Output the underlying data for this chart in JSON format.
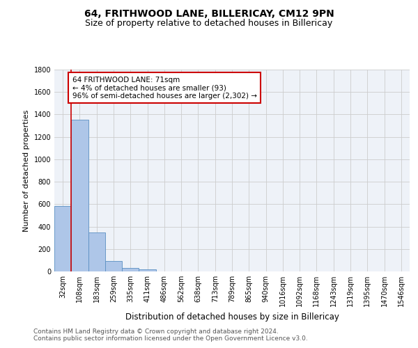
{
  "title": "64, FRITHWOOD LANE, BILLERICAY, CM12 9PN",
  "subtitle": "Size of property relative to detached houses in Billericay",
  "xlabel": "Distribution of detached houses by size in Billericay",
  "ylabel": "Number of detached properties",
  "categories": [
    "32sqm",
    "108sqm",
    "183sqm",
    "259sqm",
    "335sqm",
    "411sqm",
    "486sqm",
    "562sqm",
    "638sqm",
    "713sqm",
    "789sqm",
    "865sqm",
    "940sqm",
    "1016sqm",
    "1092sqm",
    "1168sqm",
    "1243sqm",
    "1319sqm",
    "1395sqm",
    "1470sqm",
    "1546sqm"
  ],
  "values": [
    585,
    1355,
    350,
    93,
    30,
    20,
    0,
    0,
    0,
    0,
    0,
    0,
    0,
    0,
    0,
    0,
    0,
    0,
    0,
    0,
    0
  ],
  "bar_color": "#aec6e8",
  "bar_edge_color": "#5a8fc2",
  "grid_color": "#cccccc",
  "bg_color": "#eef2f8",
  "annotation_text": "64 FRITHWOOD LANE: 71sqm\n← 4% of detached houses are smaller (93)\n96% of semi-detached houses are larger (2,302) →",
  "annotation_box_color": "#cc0000",
  "vline_color": "#cc0000",
  "ylim": [
    0,
    1800
  ],
  "yticks": [
    0,
    200,
    400,
    600,
    800,
    1000,
    1200,
    1400,
    1600,
    1800
  ],
  "footer1": "Contains HM Land Registry data © Crown copyright and database right 2024.",
  "footer2": "Contains public sector information licensed under the Open Government Licence v3.0.",
  "title_fontsize": 10,
  "subtitle_fontsize": 9,
  "xlabel_fontsize": 8.5,
  "ylabel_fontsize": 8,
  "tick_fontsize": 7,
  "annotation_fontsize": 7.5,
  "footer_fontsize": 6.5
}
